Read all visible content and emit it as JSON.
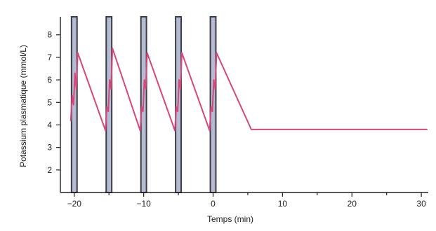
{
  "chart_data": {
    "type": "line",
    "title": "",
    "xlabel": "Temps (min)",
    "ylabel": "Potassium plasmatique (mmol/L)",
    "xlim": [
      -22,
      31
    ],
    "ylim": [
      1,
      8.8
    ],
    "xticks": [
      -20,
      -10,
      0,
      10,
      20,
      30
    ],
    "xtick_labels": [
      "−20",
      "−10",
      "0",
      "10",
      "20",
      "30"
    ],
    "xticks_minor": [
      -15,
      -5,
      5,
      15,
      25
    ],
    "yticks": [
      2,
      3,
      4,
      5,
      6,
      7,
      8
    ],
    "ytick_labels": [
      "2",
      "3",
      "4",
      "5",
      "6",
      "7",
      "8"
    ],
    "grid": false,
    "series": [
      {
        "color": "#d6477a",
        "x": [
          -20.5,
          -20.3,
          -20.1,
          -19.9,
          -19.7,
          -19.5,
          -15.5,
          -15.3,
          -15.1,
          -14.9,
          -14.7,
          -14.5,
          -10.5,
          -10.3,
          -10.1,
          -9.9,
          -9.7,
          -9.5,
          -5.5,
          -5.3,
          -5.1,
          -4.9,
          -4.7,
          -4.5,
          -0.5,
          -0.3,
          -0.1,
          0.1,
          0.3,
          0.5,
          5.5,
          30.8
        ],
        "y": [
          4.2,
          5.3,
          4.9,
          6.3,
          5.6,
          7.2,
          3.75,
          4.8,
          4.6,
          6.0,
          5.6,
          7.4,
          3.75,
          4.8,
          4.6,
          6.0,
          5.6,
          7.2,
          3.75,
          4.8,
          4.6,
          6.0,
          5.6,
          7.2,
          3.75,
          4.8,
          4.6,
          6.0,
          5.6,
          7.2,
          3.8,
          3.8
        ]
      }
    ],
    "bars": {
      "x": [
        -20,
        -15,
        -10,
        -5,
        0
      ],
      "width_min": 0.8,
      "y_top": 8.8,
      "fill": "#b4bcd4",
      "stroke": "#3c3c46"
    }
  }
}
